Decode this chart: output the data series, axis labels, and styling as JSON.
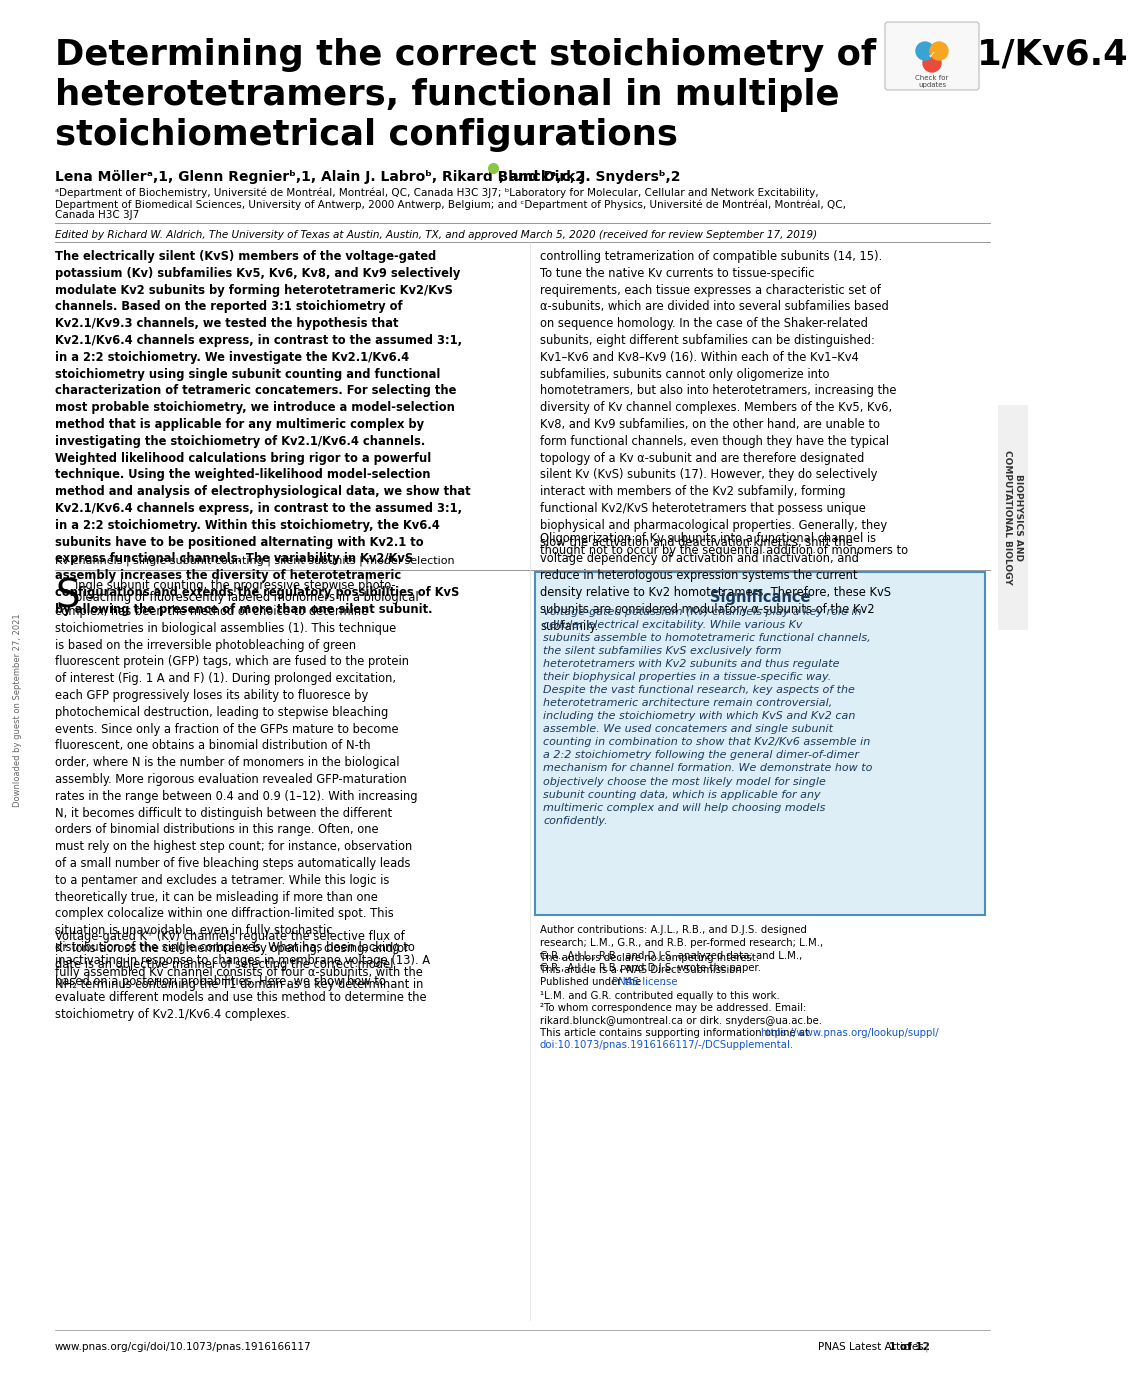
{
  "title_line1": "Determining the correct stoichiometry of Kv2.1/Kv6.4",
  "title_line2": "heterotetramers, functional in multiple",
  "title_line3": "stoichiometrical configurations",
  "authors": "Lena Möllerᵃ,1, Glenn Regnierᵇ,1, Alain J. Labroᵇ, Rikard Blunckᵃ,c,2 ●, and Dirk J. Snydersᵇ,2",
  "affiliations_line1": "ᵃDepartment of Biochemistry, Université de Montréal, Montréal, QC, Canada H3C 3J7; ᵇLaboratory for Molecular, Cellular and Network Excitability,",
  "affiliations_line2": "Department of Biomedical Sciences, University of Antwerp, 2000 Antwerp, Belgium; and ᶜDepartment of Physics, Université de Montréal, Montréal, QC,",
  "affiliations_line3": "Canada H3C 3J7",
  "edited_by": "Edited by Richard W. Aldrich, The University of Texas at Austin, Austin, TX, and approved March 5, 2020 (received for review September 17, 2019)",
  "abstract": "The electrically silent (KvS) members of the voltage-gated potassium (Kv) subfamilies Kv5, Kv6, Kv8, and Kv9 selectively modulate Kv2 subunits by forming heterotetrameric Kv2/KvS channels. Based on the reported 3:1 stoichiometry of Kv2.1/Kv9.3 channels, we tested the hypothesis that Kv2.1/Kv6.4 channels express, in contrast to the assumed 3:1, in a 2:2 stoichiometry. We investigate the Kv2.1/Kv6.4 stoichiometry using single subunit counting and functional characterization of tetrameric concatemers. For selecting the most probable stoichiometry, we introduce a model-selection method that is applicable for any multimeric complex by investigating the stoichiometry of Kv2.1/Kv6.4 channels. Weighted likelihood calculations bring rigor to a powerful technique. Using the weighted-likelihood model-selection method and analysis of electrophysiological data, we show that Kv2.1/Kv6.4 channels express, in contrast to the assumed 3:1, in a 2:2 stoichiometry. Within this stoichiometry, the Kv6.4 subunits have to be positioned alternating with Kv2.1 to express functional channels. The variability in Kv2/KvS assembly increases the diversity of heterotetrameric configurations and extends the regulatory possibilities of KvS by allowing the presence of more than one silent subunit.",
  "keywords": "Kv channels | single subunit counting | silent subunits | model selection",
  "intro_s_cap": "S",
  "intro_rest_line1": "ingle subunit counting, the progressive stepwise photo-",
  "intro_rest_line2": "bleaching of fluorescently labeled monomers in a biological",
  "intro_body": "complex, has been the method of choice to determine stoichiometries in biological assemblies (1). This technique is based on the irreversible photobleaching of green fluorescent protein (GFP) tags, which are fused to the protein of interest (Fig. 1 A and F) (1). During prolonged excitation, each GFP progressively loses its ability to fluoresce by photochemical destruction, leading to stepwise bleaching events. Since only a fraction of the GFPs mature to become fluorescent, one obtains a binomial distribution of N-th order, where N is the number of monomers in the biological assembly. More rigorous evaluation revealed GFP-maturation rates in the range between 0.4 and 0.9 (1–12). With increasing N, it becomes difficult to distinguish between the different orders of binomial distributions in this range. Often, one must rely on the highest step count; for instance, observation of a small number of five bleaching steps automatically leads to a pentamer and excludes a tetramer. While this logic is theoretically true, it can be misleading if more than one complex colocalize within one diffraction-limited spot. This situation is unavoidable, even in fully stochastic distribution of the single complexes. What has been lacking to date is an objective manner of selecting the correct model based on a posteriori probabilities. Here, we show how to evaluate different models and use this method to determine the stoichiometry of Kv2.1/Kv6.4 complexes.",
  "intro_para2_line1": "Voltage-gated K⁺ (Kv) channels regulate the selective flux of",
  "intro_para2_line2": "K⁺ ions across the cell membrane by opening, closing, and/or",
  "intro_para2_line3": "inactivating in response to changes in membrane voltage (13). A",
  "intro_para2_line4": "fully assembled Kv channel consists of four α-subunits, with the",
  "intro_para2_line5": "NH₂ terminus containing the T1 domain as a key determinant in",
  "right_col_text": "controlling tetramerization of compatible subunits (14, 15). To tune the native Kv currents to tissue-specific requirements, each tissue expresses a characteristic set of α-subunits, which are divided into several subfamilies based on sequence homology. In the case of the Shaker-related subunits, eight different subfamilies can be distinguished: Kv1–Kv6 and Kv8–Kv9 (16). Within each of the Kv1–Kv4 subfamilies, subunits cannot only oligomerize into homotetramers, but also into heterotetramers, increasing the diversity of Kv channel complexes. Members of the Kv5, Kv6, Kv8, and Kv9 subfamilies, on the other hand, are unable to form functional channels, even though they have the typical topology of a Kv α-subunit and are therefore designated silent Kv (KvS) subunits (17). However, they do selectively interact with members of the Kv2 subfamily, forming functional Kv2/KvS heterotetramers that possess unique biophysical and pharmacological properties. Generally, they slow the activation and deactivation kinetics, shift the voltage dependency of activation and inactivation, and reduce in heterologous expression systems the current density relative to Kv2 homotetramers. Therefore, these KvS subunits are considered modulatory α-subunits of the Kv2 subfamily.",
  "right_col_line2": "Oligomerization of Kv subunits into a functional channel is",
  "right_col_line3": "thought not to occur by the sequential addition of monomers to",
  "significance_title": "Significance",
  "significance_text": "Voltage-gated potassium (Kv) channels play a key role in cellular electrical excitability. While various Kv subunits assemble to homotetrameric functional channels, the silent subfamilies KvS exclusively form heterotetramers with Kv2 subunits and thus regulate their biophysical properties in a tissue-specific way. Despite the vast functional research, key aspects of the heterotetrameric architecture remain controversial, including the stoichiometry with which KvS and Kv2 can assemble. We used concatemers and single subunit counting in combination to show that Kv2/Kv6 assemble in a 2:2 stoichiometry following the general dimer-of-dimer mechanism for channel formation. We demonstrate how to objectively choose the most likely model for single subunit counting data, which is applicable for any multimeric complex and will help choosing models confidently.",
  "author_contrib": "Author contributions: A.J.L., R.B., and D.J.S. designed research; L.M., G.R., and R.B. per-formed research; L.M., G.R., A.J.L., R.B., and D.J.S. analyzed data; and L.M., G.R., A.J.L., R.B., and D.J.S. wrote the paper.",
  "competing": "The authors declare no competing interest.",
  "pnas_direct": "This article is a PNAS Direct Submission.",
  "license_pre": "Published under the ",
  "license_link": "PNAS license",
  "license_post": ".",
  "footnote1": "¹L.M. and G.R. contributed equally to this work.",
  "footnote2": "²To whom correspondence may be addressed. Email: rikard.blunck@umontreal.ca or dirk.\nsnyders@ua.ac.be.",
  "supp_pre": "This article contains supporting information online at ",
  "supp_link": "https://www.pnas.org/lookup/suppl/",
  "supp_link2": "doi:10.1073/pnas.1916166117/-/DCSupplemental.",
  "url": "www.pnas.org/cgi/doi/10.1073/pnas.1916166117",
  "page_info": "PNAS Latest Articles",
  "page_num": "1 of 12",
  "sidebar_text": "BIOPHYSICS AND\nCOMPUTATIONAL BIOLOGY",
  "downloaded_text": "Downloaded by guest on September 27, 2021",
  "bg": "#ffffff",
  "fg": "#000000",
  "sig_bg": "#ddeef6",
  "sig_border": "#4a90b8",
  "sig_text": "#1a3a5c",
  "link_color": "#1155cc",
  "gray": "#888888",
  "lightgray": "#dddddd"
}
